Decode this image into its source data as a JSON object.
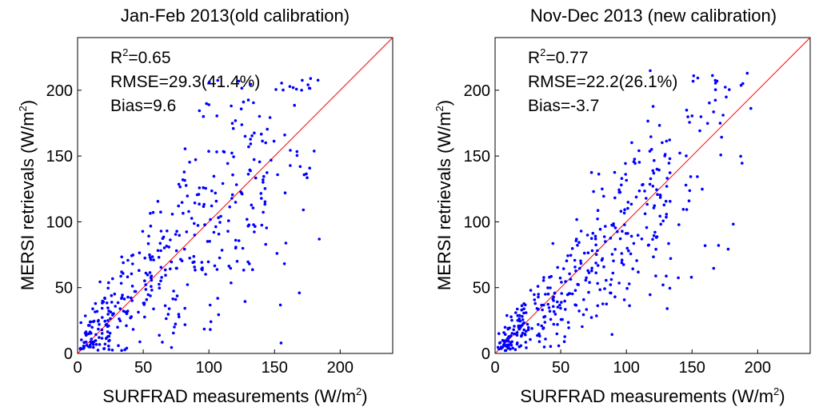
{
  "chart_data": [
    {
      "type": "scatter",
      "title": "Jan-Feb 2013(old calibration)",
      "xlabel": {
        "main": "SURFRAD measurements (W/m",
        "sup": "2",
        "end": ")"
      },
      "ylabel": {
        "main": "MERSI retrievals (W/m",
        "sup": "2",
        "end": ")"
      },
      "xlim": [
        0,
        240
      ],
      "ylim": [
        0,
        240
      ],
      "xticks": [
        0,
        50,
        100,
        150,
        200
      ],
      "yticks": [
        0,
        50,
        100,
        150,
        200
      ],
      "reference_line": "1:1",
      "colors": {
        "points": "#0000ff",
        "line": "#ff0000"
      },
      "annotations": [
        {
          "label": "R",
          "sup": "2",
          "value": "=0.65"
        },
        {
          "text": "RMSE=29.3(41.4%)"
        },
        {
          "text": "Bias=9.6"
        }
      ],
      "n_points": 420,
      "seed": 7
    },
    {
      "type": "scatter",
      "title": "Nov-Dec 2013 (new calibration)",
      "xlabel": {
        "main": "SURFRAD measurements (W/m",
        "sup": "2",
        "end": ")"
      },
      "ylabel": {
        "main": "MERSI retrievals (W/m",
        "sup": "2",
        "end": ")"
      },
      "xlim": [
        0,
        240
      ],
      "ylim": [
        0,
        240
      ],
      "xticks": [
        0,
        50,
        100,
        150,
        200
      ],
      "yticks": [
        0,
        50,
        100,
        150,
        200
      ],
      "reference_line": "1:1",
      "colors": {
        "points": "#0000ff",
        "line": "#ff0000"
      },
      "annotations": [
        {
          "label": "R",
          "sup": "2",
          "value": "=0.77"
        },
        {
          "text": "RMSE=22.2(26.1%)"
        },
        {
          "text": "Bias=-3.7"
        }
      ],
      "n_points": 420,
      "seed": 19
    }
  ]
}
